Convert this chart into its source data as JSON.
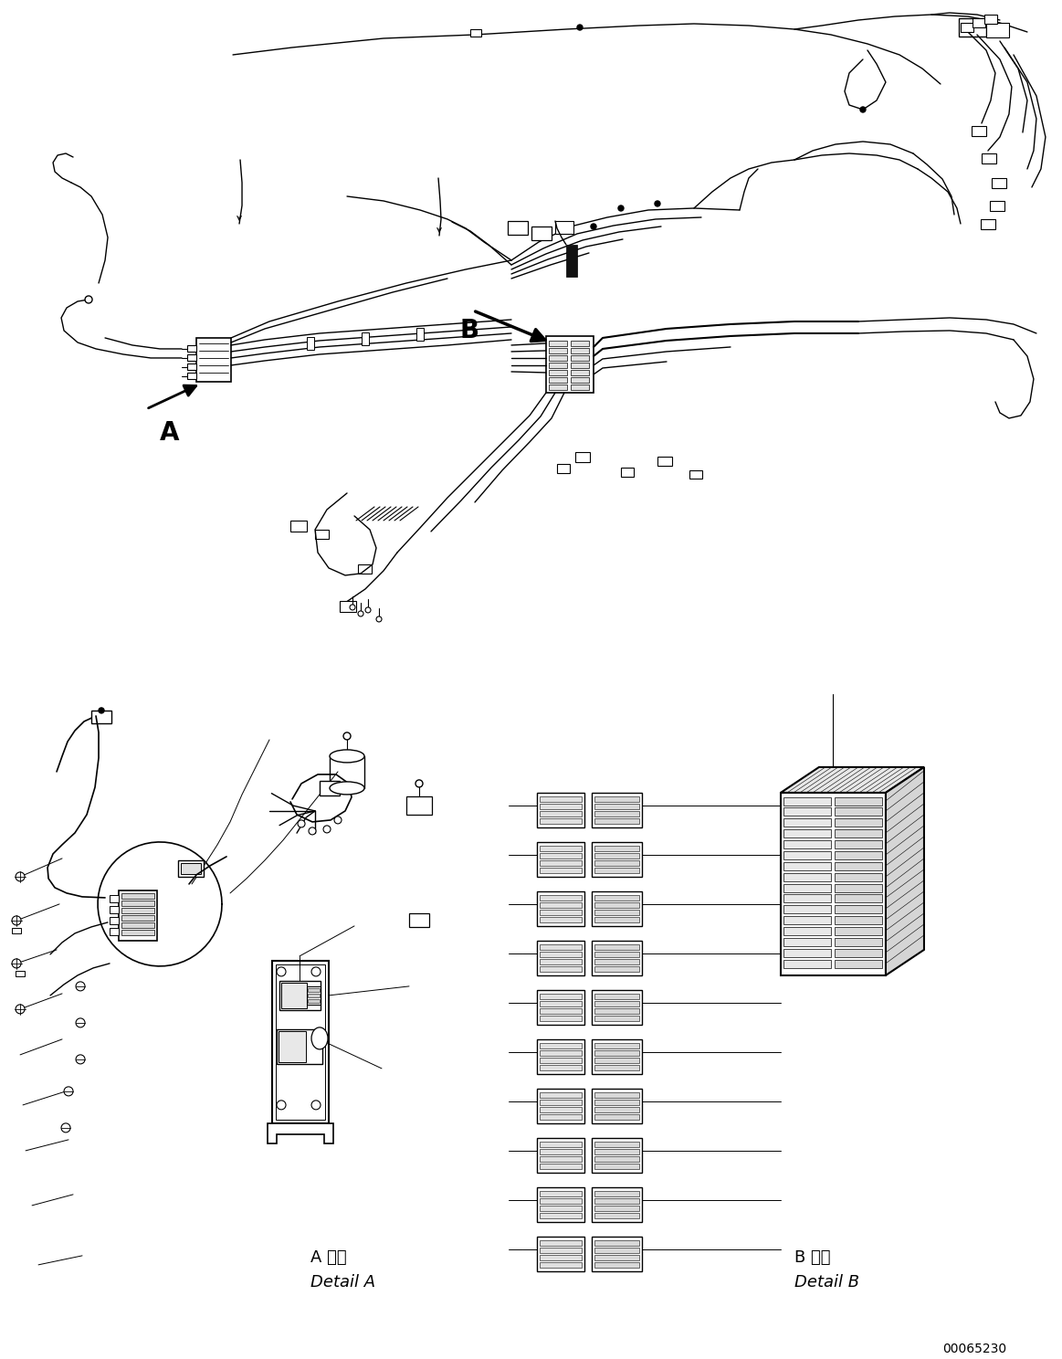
{
  "background_color": "#ffffff",
  "line_color": "#000000",
  "figure_width": 11.63,
  "figure_height": 14.88,
  "dpi": 100,
  "label_A": "A",
  "label_B": "B",
  "text_detail_a_jp": "A 詳細",
  "text_detail_a_en": "Detail A",
  "text_detail_b_jp": "B 詳細",
  "text_detail_b_en": "Detail B",
  "part_number": "00065230",
  "font_size_labels": 20,
  "font_size_detail": 13,
  "font_size_part": 10
}
